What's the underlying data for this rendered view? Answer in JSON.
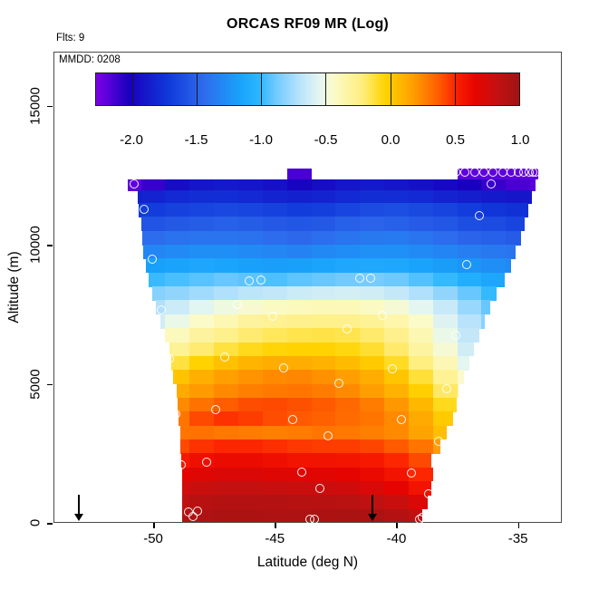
{
  "title": "ORCAS RF09 MR (Log)",
  "annotations": {
    "flights": "Flts: 9",
    "mmdd": "MMDD: 0208"
  },
  "axes": {
    "x": {
      "label": "Latitude (deg N)",
      "range": [
        -54.1,
        -33.2
      ],
      "ticks": [
        -50,
        -45,
        -40,
        -35
      ],
      "tick_labels": [
        "-50",
        "-45",
        "-40",
        "-35"
      ]
    },
    "y": {
      "label": "Altitude (m)",
      "range": [
        0,
        16945
      ],
      "ticks": [
        0,
        5000,
        10000,
        15000
      ],
      "tick_labels": [
        "0",
        "5000",
        "10000",
        "15000"
      ]
    }
  },
  "colorbar": {
    "range": [
      -2.28,
      1.0
    ],
    "ticks": [
      -2.0,
      -1.5,
      -1.0,
      -0.5,
      0.0,
      0.5,
      1.0
    ],
    "tick_labels": [
      "-2.0",
      "-1.5",
      "-1.0",
      "-0.5",
      "0.0",
      "0.5",
      "1.0"
    ],
    "divider_values": [
      -2.0,
      -1.5,
      -1.0,
      -0.5,
      0.0,
      0.5
    ],
    "palette": [
      [
        -2.28,
        "#7C00E8"
      ],
      [
        -2.02,
        "#1800BE"
      ],
      [
        -1.72,
        "#1038DA"
      ],
      [
        -1.45,
        "#2E6AEC"
      ],
      [
        -1.18,
        "#18A0FA"
      ],
      [
        -1.02,
        "#2AB6FF"
      ],
      [
        -0.88,
        "#72CAFF"
      ],
      [
        -0.68,
        "#C0E6FA"
      ],
      [
        -0.54,
        "#E6F7EF"
      ],
      [
        -0.44,
        "#FBFBC9"
      ],
      [
        -0.22,
        "#FFEE80"
      ],
      [
        -0.04,
        "#FFD400"
      ],
      [
        0.18,
        "#FF9E00"
      ],
      [
        0.38,
        "#FF5A00"
      ],
      [
        0.52,
        "#FB1E00"
      ],
      [
        0.66,
        "#E60400"
      ],
      [
        0.82,
        "#C51010"
      ],
      [
        1.0,
        "#9E1414"
      ]
    ]
  },
  "chart_data": {
    "type": "heatmap",
    "title": "ORCAS RF09 MR (Log)",
    "xlabel": "Latitude (deg N)",
    "ylabel": "Altitude (m)",
    "x_range": [
      -54.1,
      -33.2
    ],
    "y_range": [
      0,
      16945
    ],
    "value_range": [
      -2.28,
      1.0
    ],
    "lat_centers": [
      -51,
      -50,
      -49,
      -48,
      -47,
      -46,
      -45,
      -44,
      -43,
      -42,
      -41,
      -40,
      -39,
      -38,
      -37,
      -36,
      -35,
      -34
    ],
    "col_width": 1.0,
    "rows": [
      {
        "alt": [
          12350,
          12750
        ],
        "lat_span": [
          -44.5,
          -34.2
        ],
        "values": [
          null,
          null,
          null,
          null,
          null,
          null,
          null,
          -2.15,
          null,
          null,
          null,
          null,
          null,
          null,
          -2.2,
          -2.2,
          -2.2,
          -2.2
        ]
      },
      {
        "alt": [
          11950,
          12350
        ],
        "lat_span": [
          -51.05,
          -34.3
        ],
        "values": [
          -2.2,
          -2.1,
          -1.95,
          -1.9,
          -1.88,
          -1.9,
          -1.93,
          -2.0,
          -1.95,
          -1.9,
          -1.88,
          -1.9,
          -1.93,
          -1.97,
          -2.02,
          -2.1,
          -2.15,
          -2.2
        ]
      },
      {
        "alt": [
          11500,
          11950
        ],
        "lat_span": [
          -50.65,
          -34.45
        ],
        "values": [
          -1.85,
          -1.83,
          -1.8,
          -1.78,
          -1.78,
          -1.8,
          -1.83,
          -1.85,
          -1.83,
          -1.8,
          -1.78,
          -1.78,
          -1.8,
          -1.83,
          -1.86,
          -1.88,
          -1.9,
          -1.9
        ]
      },
      {
        "alt": [
          11000,
          11500
        ],
        "lat_span": [
          -50.6,
          -34.6
        ],
        "values": [
          -1.72,
          -1.7,
          -1.67,
          -1.65,
          -1.64,
          -1.65,
          -1.67,
          -1.7,
          -1.68,
          -1.65,
          -1.62,
          -1.6,
          -1.63,
          -1.66,
          -1.7,
          -1.73,
          -1.76,
          -1.78
        ]
      },
      {
        "alt": [
          10500,
          11000
        ],
        "lat_span": [
          -50.5,
          -34.75
        ],
        "values": [
          -1.6,
          -1.57,
          -1.54,
          -1.52,
          -1.5,
          -1.52,
          -1.54,
          -1.56,
          -1.54,
          -1.5,
          -1.48,
          -1.5,
          -1.53,
          -1.56,
          -1.6,
          -1.62,
          -1.65,
          -1.66
        ]
      },
      {
        "alt": [
          10000,
          10500
        ],
        "lat_span": [
          -50.45,
          -34.9
        ],
        "values": [
          -1.47,
          -1.44,
          -1.41,
          -1.4,
          -1.4,
          -1.41,
          -1.44,
          -1.46,
          -1.43,
          -1.4,
          -1.38,
          -1.37,
          -1.4,
          -1.44,
          -1.48,
          -1.5,
          -1.53,
          -1.54
        ]
      },
      {
        "alt": [
          9500,
          10000
        ],
        "lat_span": [
          -50.4,
          -35.1
        ],
        "values": [
          -1.33,
          -1.31,
          -1.29,
          -1.27,
          -1.27,
          -1.29,
          -1.31,
          -1.33,
          -1.3,
          -1.28,
          -1.26,
          -1.26,
          -1.29,
          -1.32,
          -1.35,
          -1.38,
          -1.4,
          null
        ]
      },
      {
        "alt": [
          9000,
          9500
        ],
        "lat_span": [
          -50.3,
          -35.3
        ],
        "values": [
          -1.2,
          -1.18,
          -1.16,
          -1.14,
          -1.15,
          -1.17,
          -1.19,
          -1.17,
          -1.15,
          -1.13,
          -1.12,
          -1.13,
          -1.16,
          -1.2,
          -1.24,
          -1.27,
          -1.3,
          null
        ]
      },
      {
        "alt": [
          8500,
          9000
        ],
        "lat_span": [
          -50.2,
          -35.55
        ],
        "values": [
          -1.02,
          -0.99,
          -0.96,
          -0.93,
          -0.9,
          -0.92,
          -0.95,
          -0.92,
          -0.9,
          -0.88,
          -0.87,
          -0.89,
          -0.94,
          -1.0,
          -1.08,
          -1.14,
          -1.18,
          null
        ]
      },
      {
        "alt": [
          8000,
          8500
        ],
        "lat_span": [
          -50.05,
          -35.9
        ],
        "values": [
          -0.86,
          -0.83,
          -0.8,
          -0.76,
          -0.72,
          -0.69,
          -0.67,
          -0.64,
          -0.62,
          -0.61,
          -0.62,
          -0.66,
          -0.72,
          -0.8,
          -0.9,
          -1.0,
          null,
          null
        ]
      },
      {
        "alt": [
          7500,
          8000
        ],
        "lat_span": [
          -49.9,
          -36.15
        ],
        "values": [
          -0.78,
          -0.72,
          -0.64,
          -0.56,
          -0.5,
          -0.46,
          -0.42,
          -0.4,
          -0.39,
          -0.39,
          -0.42,
          -0.47,
          -0.55,
          -0.65,
          -0.78,
          -0.9,
          null,
          null
        ]
      },
      {
        "alt": [
          7000,
          7500
        ],
        "lat_span": [
          -49.7,
          -36.4
        ],
        "values": [
          null,
          -0.62,
          -0.52,
          -0.44,
          -0.37,
          -0.31,
          -0.28,
          -0.26,
          -0.25,
          -0.26,
          -0.29,
          -0.35,
          -0.44,
          -0.57,
          -0.7,
          -0.82,
          null,
          null
        ]
      },
      {
        "alt": [
          6500,
          7000
        ],
        "lat_span": [
          -49.5,
          -36.6
        ],
        "values": [
          null,
          -0.52,
          -0.4,
          -0.31,
          -0.25,
          -0.2,
          -0.17,
          -0.15,
          -0.14,
          -0.15,
          -0.19,
          -0.26,
          -0.37,
          -0.52,
          -0.67,
          -0.78,
          null,
          null
        ]
      },
      {
        "alt": [
          6000,
          6500
        ],
        "lat_span": [
          -49.35,
          -36.85
        ],
        "values": [
          null,
          -0.42,
          -0.29,
          -0.2,
          -0.13,
          -0.08,
          -0.05,
          -0.03,
          -0.03,
          -0.06,
          -0.11,
          -0.19,
          -0.32,
          -0.47,
          -0.62,
          null,
          null,
          null
        ]
      },
      {
        "alt": [
          5500,
          6000
        ],
        "lat_span": [
          -49.25,
          -37.0
        ],
        "values": [
          null,
          -0.27,
          -0.13,
          -0.03,
          0.04,
          0.09,
          0.12,
          0.12,
          0.1,
          0.06,
          0.0,
          -0.09,
          -0.22,
          -0.38,
          -0.55,
          null,
          null,
          null
        ]
      },
      {
        "alt": [
          5000,
          5500
        ],
        "lat_span": [
          -49.2,
          -37.25
        ],
        "values": [
          null,
          -0.12,
          0.03,
          0.11,
          0.17,
          0.21,
          0.24,
          0.25,
          0.22,
          0.18,
          0.12,
          0.02,
          -0.12,
          -0.28,
          -0.45,
          null,
          null,
          null
        ]
      },
      {
        "alt": [
          4500,
          5000
        ],
        "lat_span": [
          -49.05,
          -37.45
        ],
        "values": [
          null,
          -0.02,
          0.13,
          0.19,
          0.24,
          0.27,
          0.29,
          0.3,
          0.28,
          0.24,
          0.18,
          0.1,
          -0.02,
          -0.18,
          -0.35,
          null,
          null,
          null
        ]
      },
      {
        "alt": [
          4000,
          4500
        ],
        "lat_span": [
          -49.0,
          -37.55
        ],
        "values": [
          null,
          0.08,
          0.24,
          0.31,
          0.37,
          0.41,
          0.42,
          0.4,
          0.38,
          0.34,
          0.28,
          0.2,
          0.08,
          -0.08,
          -0.25,
          null,
          null,
          null
        ]
      },
      {
        "alt": [
          3500,
          4000
        ],
        "lat_span": [
          -48.95,
          -37.7
        ],
        "values": [
          null,
          0.16,
          0.3,
          0.42,
          0.47,
          0.45,
          0.41,
          0.38,
          0.36,
          0.33,
          0.3,
          0.24,
          0.13,
          0.0,
          -0.15,
          null,
          null,
          null
        ]
      },
      {
        "alt": [
          3000,
          3500
        ],
        "lat_span": [
          -48.9,
          -37.95
        ],
        "values": [
          null,
          0.2,
          0.3,
          0.31,
          0.29,
          0.28,
          0.27,
          0.28,
          0.3,
          0.29,
          0.27,
          0.24,
          0.16,
          0.05,
          null,
          null,
          null,
          null
        ]
      },
      {
        "alt": [
          2500,
          3000
        ],
        "lat_span": [
          -48.9,
          -38.2
        ],
        "values": [
          null,
          0.32,
          0.42,
          0.47,
          0.5,
          0.5,
          0.48,
          0.46,
          0.45,
          0.45,
          0.43,
          0.38,
          0.3,
          0.18,
          null,
          null,
          null,
          null
        ]
      },
      {
        "alt": [
          2000,
          2500
        ],
        "lat_span": [
          -48.85,
          -38.6
        ],
        "values": [
          null,
          0.46,
          0.55,
          0.6,
          0.62,
          0.62,
          0.6,
          0.58,
          0.58,
          0.57,
          0.55,
          0.5,
          0.42,
          0.32,
          null,
          null,
          null,
          null
        ]
      },
      {
        "alt": [
          1500,
          2000
        ],
        "lat_span": [
          -48.8,
          -38.5
        ],
        "values": [
          null,
          0.56,
          0.66,
          0.7,
          0.72,
          0.72,
          0.7,
          0.69,
          0.68,
          0.66,
          0.63,
          0.58,
          0.5,
          null,
          null,
          null,
          null,
          null
        ]
      },
      {
        "alt": [
          1000,
          1500
        ],
        "lat_span": [
          -48.8,
          -38.6
        ],
        "values": [
          null,
          0.66,
          0.76,
          0.8,
          0.82,
          0.82,
          0.81,
          0.8,
          0.79,
          0.77,
          0.73,
          0.66,
          0.58,
          null,
          null,
          null,
          null,
          null
        ]
      },
      {
        "alt": [
          500,
          1000
        ],
        "lat_span": [
          -48.8,
          -38.75
        ],
        "values": [
          null,
          0.76,
          0.85,
          0.88,
          0.9,
          0.9,
          0.9,
          0.89,
          0.88,
          0.87,
          0.85,
          0.8,
          0.72,
          null,
          null,
          null,
          null,
          null
        ]
      },
      {
        "alt": [
          0,
          500
        ],
        "lat_span": [
          -48.8,
          -38.95
        ],
        "values": [
          null,
          0.8,
          0.9,
          0.92,
          0.93,
          0.93,
          0.92,
          0.92,
          0.93,
          0.94,
          0.93,
          0.9,
          0.85,
          null,
          null,
          null,
          null,
          null
        ]
      }
    ],
    "track_points": [
      [
        -37.55,
        12610
      ],
      [
        -37.17,
        12610
      ],
      [
        -36.78,
        12610
      ],
      [
        -36.4,
        12610
      ],
      [
        -36.02,
        12610
      ],
      [
        -35.64,
        12610
      ],
      [
        -35.3,
        12610
      ],
      [
        -35.0,
        12610
      ],
      [
        -34.75,
        12610
      ],
      [
        -34.55,
        12610
      ],
      [
        -34.4,
        12610
      ],
      [
        -34.28,
        12610
      ],
      [
        -36.12,
        12180
      ],
      [
        -50.8,
        12180
      ],
      [
        -50.38,
        11270
      ],
      [
        -36.58,
        11040
      ],
      [
        -50.04,
        9480
      ],
      [
        -37.1,
        9280
      ],
      [
        -46.04,
        8700
      ],
      [
        -45.56,
        8730
      ],
      [
        -41.52,
        8790
      ],
      [
        -41.07,
        8790
      ],
      [
        -46.53,
        7850
      ],
      [
        -49.67,
        7650
      ],
      [
        -45.07,
        7420
      ],
      [
        -40.56,
        7460
      ],
      [
        -42.02,
        6970
      ],
      [
        -37.57,
        6740
      ],
      [
        -49.33,
        5910
      ],
      [
        -47.05,
        5950
      ],
      [
        -44.63,
        5560
      ],
      [
        -40.15,
        5530
      ],
      [
        -42.38,
        5010
      ],
      [
        -37.93,
        4810
      ],
      [
        -47.43,
        4070
      ],
      [
        -49.06,
        3900
      ],
      [
        -44.26,
        3710
      ],
      [
        -39.78,
        3710
      ],
      [
        -42.8,
        3120
      ],
      [
        -38.28,
        2930
      ],
      [
        -48.86,
        2080
      ],
      [
        -47.8,
        2180
      ],
      [
        -43.88,
        1820
      ],
      [
        -39.4,
        1780
      ],
      [
        -43.13,
        1230
      ],
      [
        -38.66,
        1030
      ],
      [
        -48.56,
        380
      ],
      [
        -48.37,
        220
      ],
      [
        -48.16,
        410
      ],
      [
        -43.55,
        120
      ],
      [
        -43.36,
        120
      ],
      [
        -39.06,
        120
      ],
      [
        -38.95,
        200
      ]
    ],
    "arrows_lat": [
      -53.07,
      -40.97
    ]
  }
}
